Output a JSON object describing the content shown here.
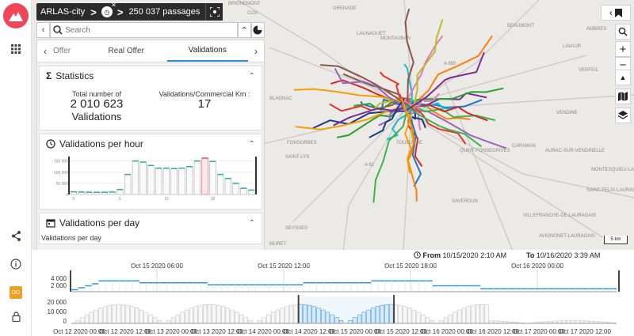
{
  "app": {
    "name": "ARLAS-city",
    "count_label": "250 037 passages"
  },
  "search": {
    "placeholder": "Search"
  },
  "tabs": [
    {
      "label": "Offer"
    },
    {
      "label": "Real Offer"
    },
    {
      "label": "Validations"
    }
  ],
  "tab_active_index": 2,
  "statistics": {
    "title": "Statistics",
    "total_label": "Total number of",
    "total_value": "2 010 623",
    "total_unit": "Validations",
    "ratio_label": "Validations/Commercial Km :",
    "ratio_value": "17"
  },
  "per_hour": {
    "title": "Validations per hour",
    "chart_data": {
      "type": "bar",
      "categories": [
        "0",
        "1",
        "2",
        "3",
        "4",
        "5",
        "6",
        "7",
        "8",
        "9",
        "10",
        "11",
        "12",
        "13",
        "14",
        "15",
        "16",
        "17",
        "18",
        "19",
        "20",
        "21",
        "22",
        "23"
      ],
      "values": [
        12000,
        11000,
        10000,
        10000,
        10000,
        11000,
        22000,
        90000,
        150000,
        145000,
        130000,
        118000,
        118000,
        116000,
        118000,
        125000,
        150000,
        163000,
        148000,
        90000,
        72000,
        50000,
        28000,
        20000
      ],
      "highlight_index": 17,
      "xticks": [
        "0",
        "6",
        "12",
        "18"
      ],
      "yticks": [
        "150 000",
        "100 000",
        "50 000",
        "0"
      ],
      "ylim": [
        0,
        170000
      ]
    }
  },
  "per_day": {
    "title": "Validations per day",
    "sublabel": "Validations per day"
  },
  "map_labels": [
    "BRIGNEMONT",
    "COX",
    "GRENADE",
    "LAUNAGUET",
    "AMBRES",
    "LAVAUR",
    "MONTAUBAN",
    "BEAUMONT",
    "VERFEIL",
    "VENDINE",
    "AURAC-SUR-VENDINELLE",
    "CARAMAN",
    "SAINT-FELIX-LAURAGAIS",
    "MONTESQUIEU-LAURAGAIS",
    "VILLEFRANCHE-DE-LAURAGAIS",
    "AVIGNONET-LAURAGAIS",
    "FONSORBES",
    "SAINT-LYS",
    "TOUGES",
    "SEYSSES",
    "MURET",
    "TOULOUSE",
    "QUINT-FONSEGRIVES",
    "BLAGNAC",
    "SAVERDUN",
    "A 680",
    "A 61"
  ],
  "scale_label": "5 km",
  "timeline": {
    "from_label": "From",
    "from_value": "10/15/2020 2:10 AM",
    "to_label": "To",
    "to_value": "10/16/2020 3:39 AM",
    "top_ticks": [
      "Oct 15 2020 06:00",
      "Oct 15 2020 12:00",
      "Oct 15 2020 18:00",
      "Oct 16 2020 00:00"
    ],
    "top_yticks": [
      "4 000",
      "2 000"
    ],
    "bottom_yticks": [
      "20 000",
      "10 000",
      "0"
    ],
    "bottom_ticks": [
      "Oct 12 2020 00:00",
      "Oct 12 2020 12:00",
      "Oct 13 2020 00:00",
      "Oct 13 2020 12:00",
      "Oct 14 2020 00:00",
      "Oct 14 2020 12:00",
      "Oct 15 2020 00:00",
      "Oct 15 2020 12:00",
      "Oct 16 2020 00:00",
      "Oct 16 2020 12:00",
      "Oct 17 2020 00:00",
      "Oct 17 2020 12:00"
    ]
  },
  "colors": {
    "accent": "#2a8fd8",
    "logo": "#f0465a",
    "topbar": "#2b2b2b",
    "highlight_bar": "#e05060"
  }
}
